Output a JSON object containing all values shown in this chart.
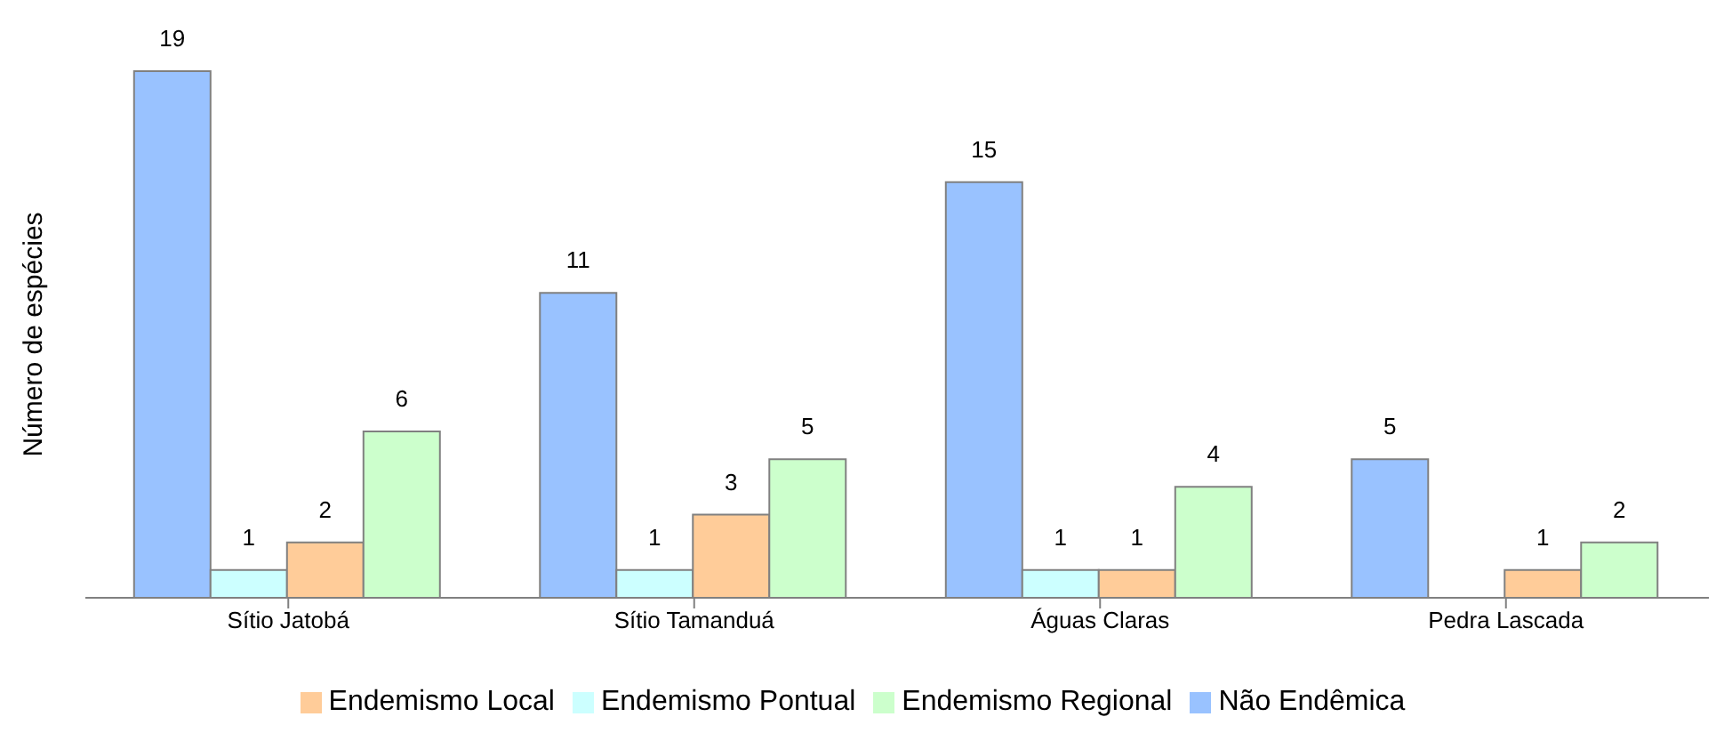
{
  "chart_data": {
    "type": "bar",
    "ylabel": "Número de espécies",
    "categories": [
      "Sítio Jatobá",
      "Sítio Tamanduá",
      "Águas Claras",
      "Pedra Lascada"
    ],
    "series": [
      {
        "name": "Não Endêmica",
        "color": "#99c2ff",
        "values": [
          19,
          11,
          15,
          5
        ]
      },
      {
        "name": "Endemismo Pontual",
        "color": "#ccffff",
        "values": [
          1,
          1,
          1,
          null
        ]
      },
      {
        "name": "Endemismo Local",
        "color": "#ffcc99",
        "values": [
          2,
          3,
          1,
          1
        ]
      },
      {
        "name": "Endemismo Regional",
        "color": "#ccffcc",
        "values": [
          6,
          5,
          4,
          2
        ]
      }
    ],
    "data_labels": true,
    "grid": false,
    "legend": "bottom"
  }
}
